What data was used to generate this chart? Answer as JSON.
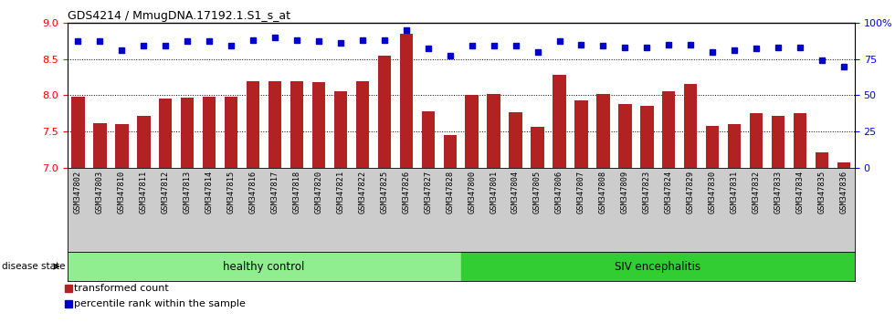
{
  "title": "GDS4214 / MmugDNA.17192.1.S1_s_at",
  "samples": [
    "GSM347802",
    "GSM347803",
    "GSM347810",
    "GSM347811",
    "GSM347812",
    "GSM347813",
    "GSM347814",
    "GSM347815",
    "GSM347816",
    "GSM347817",
    "GSM347818",
    "GSM347820",
    "GSM347821",
    "GSM347822",
    "GSM347825",
    "GSM347826",
    "GSM347827",
    "GSM347828",
    "GSM347800",
    "GSM347801",
    "GSM347804",
    "GSM347805",
    "GSM347806",
    "GSM347807",
    "GSM347808",
    "GSM347809",
    "GSM347823",
    "GSM347824",
    "GSM347829",
    "GSM347830",
    "GSM347831",
    "GSM347832",
    "GSM347833",
    "GSM347834",
    "GSM347835",
    "GSM347836"
  ],
  "bar_values": [
    7.98,
    7.62,
    7.6,
    7.72,
    7.95,
    7.97,
    7.98,
    7.98,
    8.2,
    8.2,
    8.2,
    8.18,
    8.05,
    8.2,
    8.55,
    8.85,
    7.78,
    7.45,
    8.0,
    8.02,
    7.77,
    7.56,
    8.28,
    7.93,
    8.02,
    7.88,
    7.86,
    8.05,
    8.15,
    7.58,
    7.6,
    7.75,
    7.72,
    7.75,
    7.22,
    7.08
  ],
  "percentile_values": [
    87,
    87,
    81,
    84,
    84,
    87,
    87,
    84,
    88,
    90,
    88,
    87,
    86,
    88,
    88,
    95,
    82,
    77,
    84,
    84,
    84,
    80,
    87,
    85,
    84,
    83,
    83,
    85,
    85,
    80,
    81,
    82,
    83,
    83,
    74,
    70
  ],
  "n_healthy": 18,
  "n_siv": 18,
  "bar_color": "#b22222",
  "dot_color": "#0000cd",
  "ylim_left": [
    7.0,
    9.0
  ],
  "ylim_right": [
    0,
    100
  ],
  "yticks_left": [
    7.0,
    7.5,
    8.0,
    8.5,
    9.0
  ],
  "yticks_right": [
    0,
    25,
    50,
    75,
    100
  ],
  "healthy_color": "#90ee90",
  "siv_color": "#32cd32",
  "bg_color": "#d3d3d3",
  "tick_bg_color": "#cccccc"
}
